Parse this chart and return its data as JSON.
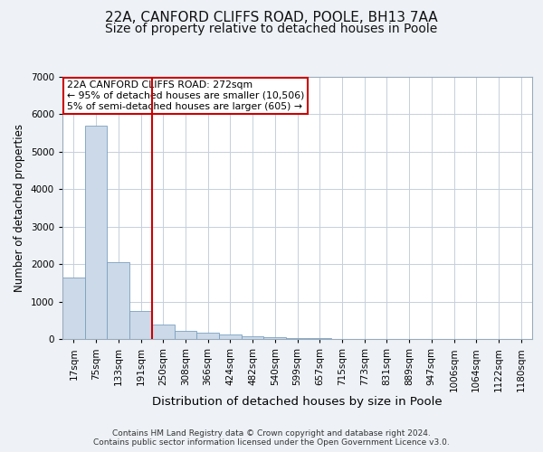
{
  "title1": "22A, CANFORD CLIFFS ROAD, POOLE, BH13 7AA",
  "title2": "Size of property relative to detached houses in Poole",
  "xlabel": "Distribution of detached houses by size in Poole",
  "ylabel": "Number of detached properties",
  "footnote": "Contains HM Land Registry data © Crown copyright and database right 2024.\nContains public sector information licensed under the Open Government Licence v3.0.",
  "bin_labels": [
    "17sqm",
    "75sqm",
    "133sqm",
    "191sqm",
    "250sqm",
    "308sqm",
    "366sqm",
    "424sqm",
    "482sqm",
    "540sqm",
    "599sqm",
    "657sqm",
    "715sqm",
    "773sqm",
    "831sqm",
    "889sqm",
    "947sqm",
    "1006sqm",
    "1064sqm",
    "1122sqm",
    "1180sqm"
  ],
  "bar_values": [
    1650,
    5700,
    2050,
    750,
    390,
    220,
    160,
    110,
    80,
    55,
    30,
    20,
    10,
    8,
    5,
    4,
    3,
    2,
    2,
    1,
    0
  ],
  "bar_color": "#ccd9e8",
  "bar_edge_color": "#7aa0c0",
  "vline_x": 3.5,
  "vline_color": "#cc0000",
  "annotation_line1": "22A CANFORD CLIFFS ROAD: 272sqm",
  "annotation_line2": "← 95% of detached houses are smaller (10,506)",
  "annotation_line3": "5% of semi-detached houses are larger (605) →",
  "annotation_box_color": "#cc0000",
  "ylim": [
    0,
    7000
  ],
  "yticks": [
    0,
    1000,
    2000,
    3000,
    4000,
    5000,
    6000,
    7000
  ],
  "background_color": "#eef2f7",
  "plot_background": "#ffffff",
  "grid_color": "#c5d0dc",
  "title1_fontsize": 11,
  "title2_fontsize": 10,
  "xlabel_fontsize": 9.5,
  "ylabel_fontsize": 8.5,
  "tick_fontsize": 7.5,
  "annot_fontsize": 7.8,
  "footnote_fontsize": 6.5
}
